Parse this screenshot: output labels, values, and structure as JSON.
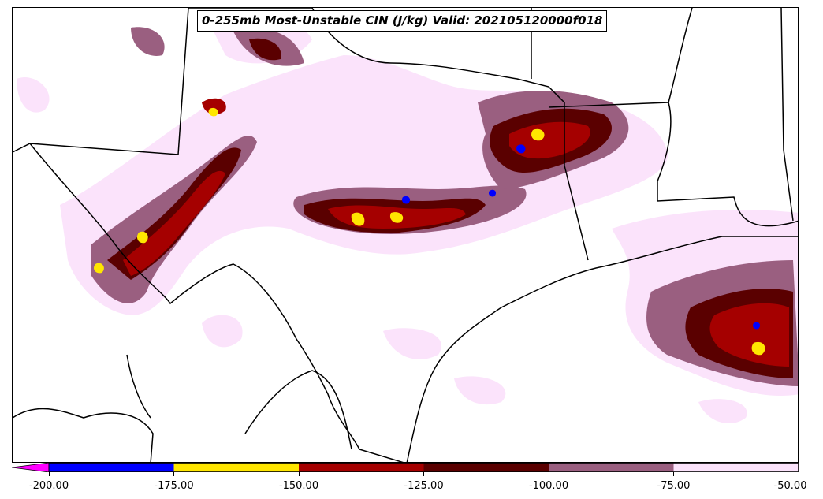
{
  "title": "0-255mb Most-Unstable CIN (J/kg) Valid: 202105120000f018",
  "colorbar": {
    "extend": "min",
    "extend_color": "#ff00ff",
    "bins": [
      {
        "from": -200,
        "to": -175,
        "color": "#0000ff"
      },
      {
        "from": -175,
        "to": -150,
        "color": "#ffe600"
      },
      {
        "from": -150,
        "to": -125,
        "color": "#a50000"
      },
      {
        "from": -125,
        "to": -100,
        "color": "#5a0000"
      },
      {
        "from": -100,
        "to": -75,
        "color": "#9a5f80"
      },
      {
        "from": -75,
        "to": -50,
        "color": "#fbe3fb"
      }
    ],
    "tick_labels": [
      "-200.00",
      "-175.00",
      "-150.00",
      "-125.00",
      "-100.00",
      "-75.00",
      "-50.00"
    ]
  },
  "map": {
    "background": "#ffffff",
    "boundary_color": "#000000"
  }
}
